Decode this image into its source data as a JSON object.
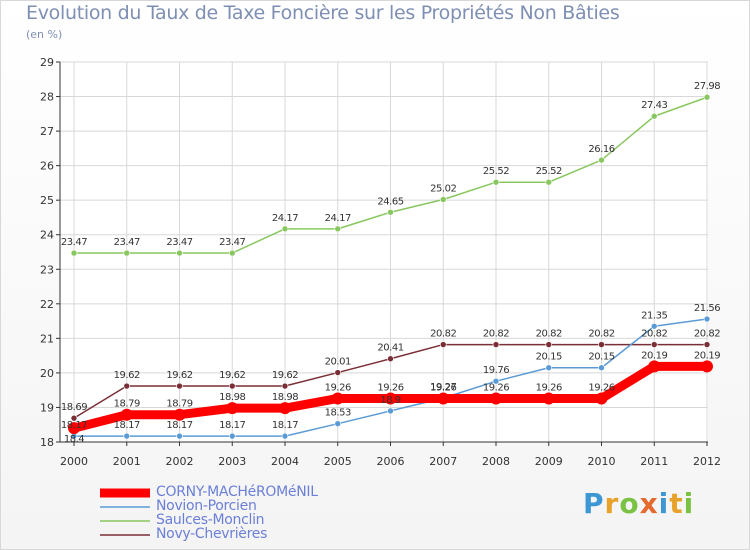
{
  "title": "Evolution du Taux de Taxe Foncière sur les Propriétés Non Bâties",
  "subtitle": "(en %)",
  "logo": {
    "text": "Proxiti"
  },
  "colors": {
    "axis": "#333333",
    "grid": "#d8d8d8",
    "corny": "#ff0000",
    "novion": "#5b9bd5",
    "saulces": "#88c75f",
    "novy": "#7a2e36"
  },
  "chart_data": {
    "type": "line",
    "x": [
      "2000",
      "2001",
      "2002",
      "2003",
      "2004",
      "2005",
      "2006",
      "2007",
      "2008",
      "2009",
      "2010",
      "2011",
      "2012"
    ],
    "ylim": [
      18,
      29
    ],
    "yticks": [
      18,
      19,
      20,
      21,
      22,
      23,
      24,
      25,
      26,
      27,
      28,
      29
    ],
    "legend_position": "bottom-left",
    "series": [
      {
        "name": "CORNY-MACHéROMéNIL",
        "color": "#ff0000",
        "width": 9,
        "values": [
          18.4,
          18.79,
          18.79,
          18.98,
          18.98,
          19.26,
          19.26,
          19.26,
          19.26,
          19.26,
          19.26,
          20.19,
          20.19
        ],
        "labels": [
          "18.4",
          "18.79",
          "18.79",
          "18.98",
          "18.98",
          "19.26",
          "19.26",
          "19.26",
          "19.26",
          "19.26",
          "19.26",
          "20.19",
          "20.19"
        ]
      },
      {
        "name": "Novion-Porcien",
        "color": "#5b9bd5",
        "width": 1.5,
        "values": [
          18.17,
          18.17,
          18.17,
          18.17,
          18.17,
          18.53,
          18.9,
          19.27,
          19.76,
          20.15,
          20.15,
          21.35,
          21.56
        ],
        "labels": [
          "18.17",
          "18.17",
          "18.17",
          "18.17",
          "18.17",
          "18.53",
          "18.9",
          "19.27",
          "19.76",
          "20.15",
          "20.15",
          "21.35",
          "21.56"
        ]
      },
      {
        "name": "Saulces-Monclin",
        "color": "#88c75f",
        "width": 1.5,
        "values": [
          23.47,
          23.47,
          23.47,
          23.47,
          24.17,
          24.17,
          24.65,
          25.02,
          25.52,
          25.52,
          26.16,
          27.43,
          27.98
        ],
        "labels": [
          "23.47",
          "23.47",
          "23.47",
          "23.47",
          "24.17",
          "24.17",
          "24.65",
          "25.02",
          "25.52",
          "25.52",
          "26.16",
          "27.43",
          "27.98"
        ]
      },
      {
        "name": "Novy-Chevrières",
        "color": "#7a2e36",
        "width": 1.5,
        "values": [
          18.69,
          19.62,
          19.62,
          19.62,
          19.62,
          20.01,
          20.41,
          20.82,
          20.82,
          20.82,
          20.82,
          20.82,
          20.82
        ],
        "labels": [
          "18.69",
          "19.62",
          "19.62",
          "19.62",
          "19.62",
          "20.01",
          "20.41",
          "20.82",
          "20.82",
          "20.82",
          "20.82",
          "20.82",
          "20.82"
        ]
      }
    ]
  }
}
